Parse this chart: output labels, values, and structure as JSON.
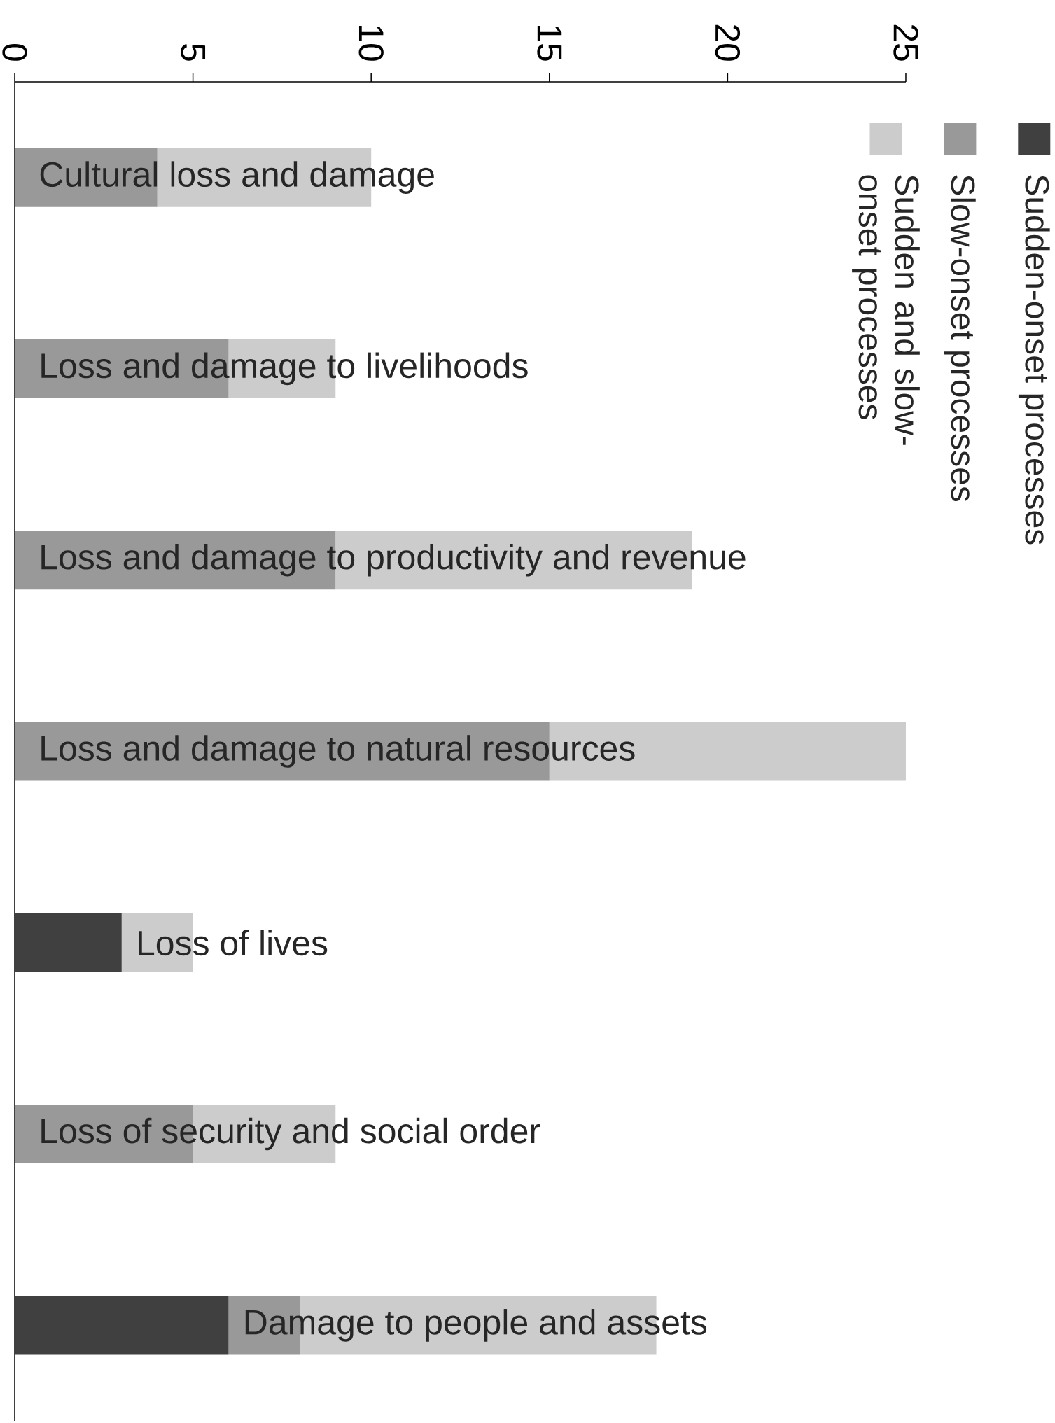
{
  "chart_data": {
    "type": "bar",
    "orientation": "horizontal",
    "stacked": true,
    "categories": [
      "Cultural loss and damage",
      "Loss and damage to livelihoods",
      "Loss and damage to productivity and revenue",
      "Loss and damage to natural resources",
      "Loss of lives",
      "Loss of security and social order",
      "Damage to people and assets"
    ],
    "series": [
      {
        "name": "Sudden-onset processes",
        "color": "#404040",
        "values": [
          0,
          0,
          0,
          0,
          3,
          0,
          6
        ]
      },
      {
        "name": "Slow-onset processes",
        "color": "#999999",
        "values": [
          4,
          6,
          9,
          15,
          0,
          5,
          2
        ]
      },
      {
        "name": "Sudden and slow-onset processes",
        "color": "#cccccc",
        "values": [
          6,
          3,
          10,
          10,
          2,
          4,
          10
        ]
      }
    ],
    "xlim": [
      0,
      25
    ],
    "xticks": [
      0,
      5,
      10,
      15,
      20,
      25
    ],
    "grid": false,
    "legend": "top right"
  }
}
